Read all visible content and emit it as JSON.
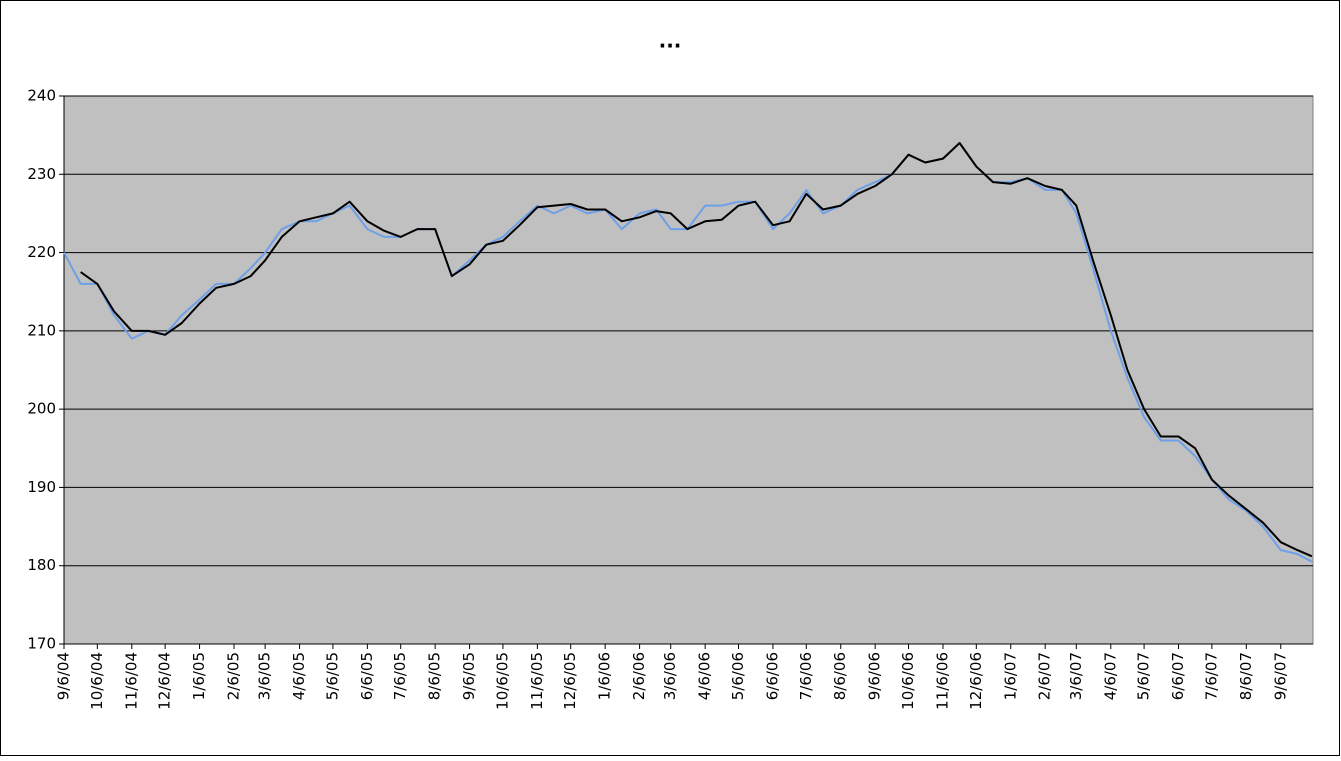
{
  "chart_data": {
    "type": "line",
    "title": "...",
    "x": [
      "9/6/04",
      "9/21/04",
      "10/6/04",
      "10/21/04",
      "11/6/04",
      "11/21/04",
      "12/6/04",
      "12/21/04",
      "1/6/05",
      "1/21/05",
      "2/6/05",
      "2/21/05",
      "3/6/05",
      "3/21/05",
      "4/6/05",
      "4/21/05",
      "5/6/05",
      "5/21/05",
      "6/6/05",
      "6/21/05",
      "7/6/05",
      "7/21/05",
      "8/6/05",
      "8/21/05",
      "9/6/05",
      "9/21/05",
      "10/6/05",
      "10/21/05",
      "11/6/05",
      "11/21/05",
      "12/6/05",
      "12/21/05",
      "1/6/06",
      "1/21/06",
      "2/6/06",
      "2/21/06",
      "3/6/06",
      "3/21/06",
      "4/6/06",
      "4/21/06",
      "5/6/06",
      "5/21/06",
      "6/6/06",
      "6/21/06",
      "7/6/06",
      "7/21/06",
      "8/6/06",
      "8/21/06",
      "9/6/06",
      "9/21/06",
      "10/6/06",
      "10/21/06",
      "11/6/06",
      "11/21/06",
      "12/6/06",
      "12/21/06",
      "1/6/07",
      "1/21/07",
      "2/6/07",
      "2/21/07",
      "3/6/07",
      "3/21/07",
      "4/6/07",
      "4/21/07",
      "5/6/07",
      "5/21/07",
      "6/6/07",
      "6/21/07",
      "7/6/07",
      "7/21/07",
      "8/6/07",
      "8/21/07",
      "9/6/07",
      "9/21/07",
      "10/4/07"
    ],
    "series": [
      {
        "color": "#6ea0e8",
        "values": [
          220,
          216,
          216,
          212,
          209,
          210,
          209.5,
          212,
          214,
          216,
          216,
          218,
          220,
          223,
          224,
          224,
          225,
          226,
          223,
          222,
          222,
          223,
          223,
          217,
          219,
          221,
          222,
          224,
          226,
          225,
          226,
          225,
          225.5,
          223,
          225,
          225.5,
          223,
          223,
          226,
          226,
          226.5,
          226.5,
          223,
          225,
          228,
          225,
          226,
          228,
          229,
          230,
          232.5,
          231.5,
          232,
          234,
          231,
          229,
          229,
          229.5,
          228,
          228,
          225,
          218,
          210,
          204,
          199,
          196,
          196,
          194,
          191,
          188.5,
          187,
          185,
          182,
          181.5,
          180.5
        ]
      },
      {
        "color": "#000000",
        "values": [
          null,
          217.5,
          216,
          212.5,
          210,
          210,
          209.5,
          211,
          213.5,
          215.5,
          216,
          217,
          219,
          222,
          224,
          224.5,
          225,
          226.5,
          224,
          222.8,
          222,
          223,
          223,
          217,
          218.5,
          221,
          221.5,
          223.5,
          225.8,
          226,
          226.2,
          225.5,
          225.5,
          224,
          224.5,
          225.3,
          225,
          223,
          224,
          224.2,
          226,
          226.5,
          223.5,
          224,
          227.5,
          225.5,
          226,
          227.5,
          228.5,
          230,
          232.5,
          231.5,
          232,
          234,
          231,
          229,
          228.8,
          229.5,
          228.5,
          228,
          226,
          219,
          212,
          205,
          200,
          196.5,
          196.5,
          195,
          191,
          189,
          187.2,
          185.5,
          183,
          182,
          181.2
        ]
      }
    ],
    "xlim": [
      "9/6/04",
      "10/5/07"
    ],
    "xticks": [
      "9/6/04",
      "10/6/04",
      "11/6/04",
      "12/6/04",
      "1/6/05",
      "2/6/05",
      "3/6/05",
      "4/6/05",
      "5/6/05",
      "6/6/05",
      "7/6/05",
      "8/6/05",
      "9/6/05",
      "10/6/05",
      "11/6/05",
      "12/6/05",
      "1/6/06",
      "2/6/06",
      "3/6/06",
      "4/6/06",
      "5/6/06",
      "6/6/06",
      "7/6/06",
      "8/6/06",
      "9/6/06",
      "10/6/06",
      "11/6/06",
      "12/6/06",
      "1/6/07",
      "2/6/07",
      "3/6/07",
      "4/6/07",
      "5/6/07",
      "6/6/07",
      "7/6/07",
      "8/6/07",
      "9/6/07"
    ],
    "ylim": [
      170,
      240
    ],
    "yticks": [
      170,
      180,
      190,
      200,
      210,
      220,
      230,
      240
    ],
    "grid": true,
    "plot_background": "#c0c0c0"
  }
}
